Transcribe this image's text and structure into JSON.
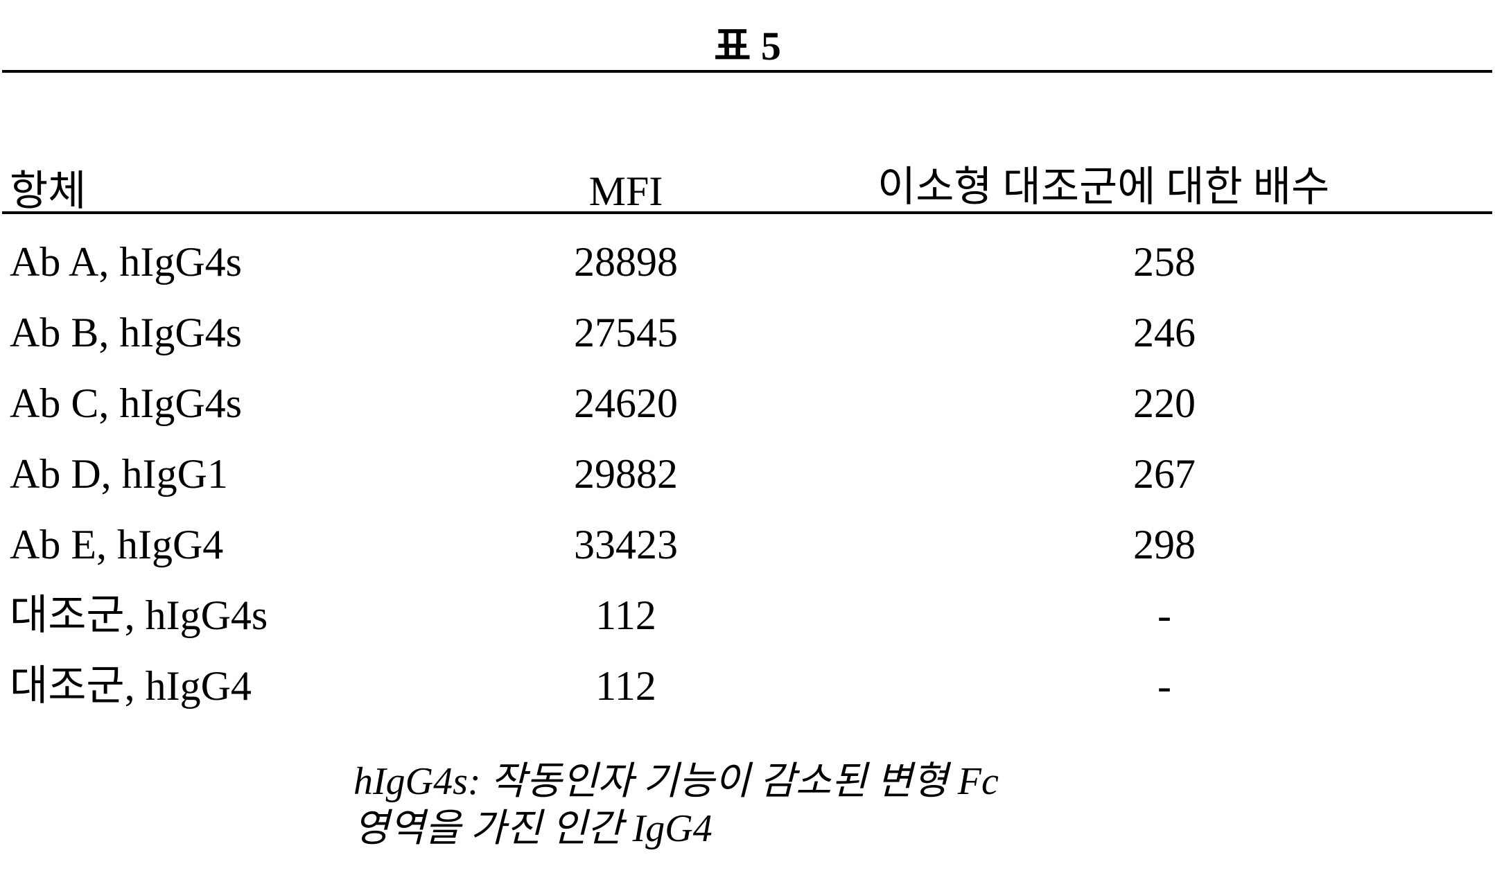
{
  "title": "표 5",
  "table": {
    "headers": [
      "항체",
      "MFI",
      "이소형 대조군에 대한 배수"
    ],
    "rows": [
      [
        "Ab A, hIgG4s",
        "28898",
        "258"
      ],
      [
        "Ab B, hIgG4s",
        "27545",
        "246"
      ],
      [
        "Ab C, hIgG4s",
        "24620",
        "220"
      ],
      [
        "Ab D, hIgG1",
        "29882",
        "267"
      ],
      [
        "Ab E, hIgG4",
        "33423",
        "298"
      ],
      [
        "대조군, hIgG4s",
        "112",
        "-"
      ],
      [
        "대조군, hIgG4",
        "112",
        "-"
      ]
    ]
  },
  "footnote": {
    "line1": "hIgG4s: 작동인자 기능이 감소된 변형 Fc",
    "line2": "영역을 가진 인간 IgG4"
  }
}
